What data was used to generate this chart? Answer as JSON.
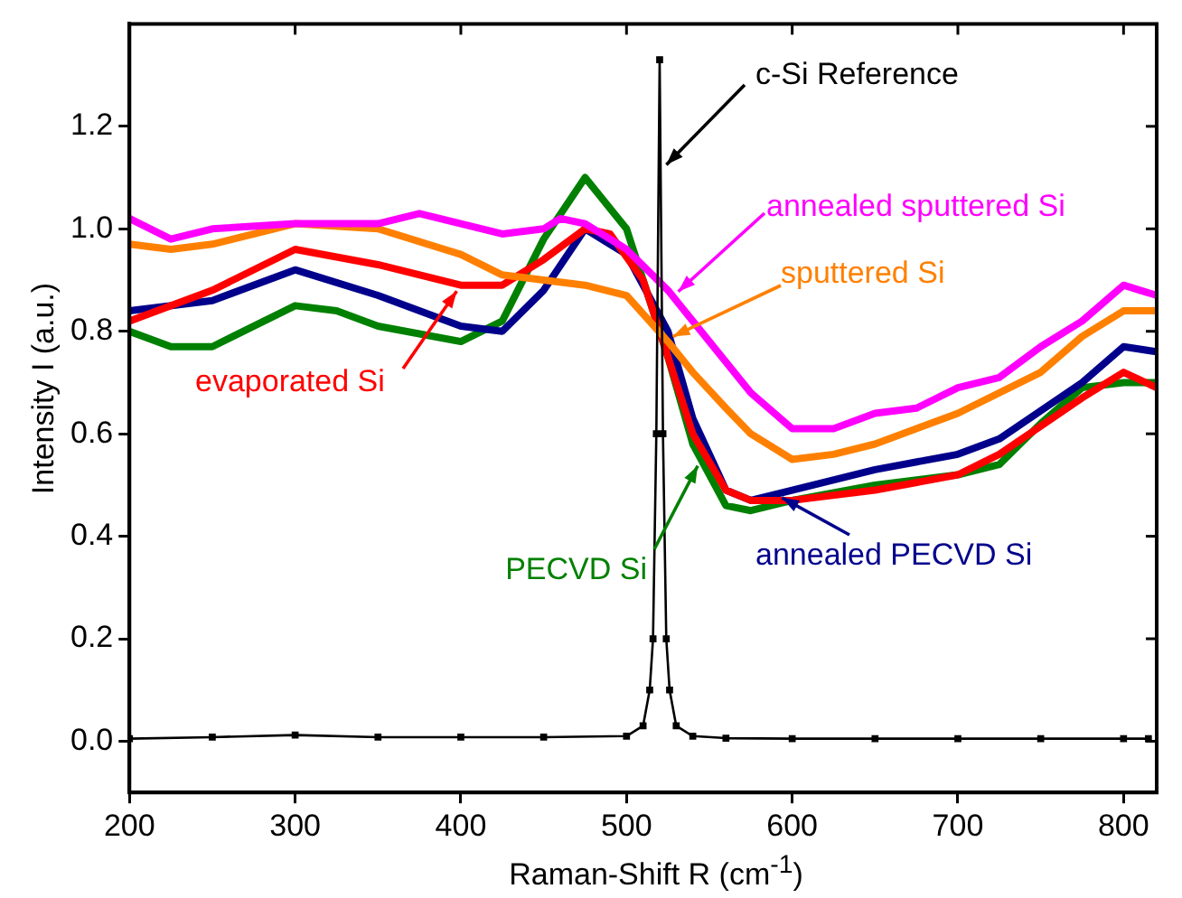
{
  "chart_data": {
    "type": "line",
    "xlabel": "Raman-Shift R (cm$^{-1}$)",
    "ylabel": "Intensity I (a.u.)",
    "xlim": [
      200,
      820
    ],
    "xticks": [
      200,
      300,
      400,
      500,
      600,
      700,
      800
    ],
    "ylim": [
      -0.1,
      1.4
    ],
    "yticks": [
      {
        "value": 0,
        "label": "0.0"
      },
      0.2,
      0.4,
      0.6,
      0.8,
      {
        "value": 1,
        "label": "1.0"
      },
      1.2
    ],
    "grid": false,
    "legend": "right",
    "line_style": "solid",
    "series": [
      {
        "name": "c-Si Reference",
        "color": "#000000",
        "marker": "square",
        "x": [
          200,
          250,
          300,
          350,
          400,
          450,
          500,
          510,
          514,
          516,
          518,
          520,
          522,
          524,
          526,
          530,
          540,
          560,
          600,
          650,
          700,
          750,
          800,
          815
        ],
        "values": [
          0.005,
          0.008,
          0.012,
          0.008,
          0.008,
          0.008,
          0.01,
          0.03,
          0.1,
          0.2,
          0.6,
          1.33,
          0.6,
          0.2,
          0.1,
          0.03,
          0.01,
          0.006,
          0.005,
          0.005,
          0.005,
          0.005,
          0.005,
          0.005
        ]
      },
      {
        "name": "annealed sputtered Si",
        "color": "#ff00ff",
        "marker": "none",
        "x": [
          200,
          225,
          250,
          300,
          350,
          375,
          400,
          425,
          450,
          460,
          475,
          500,
          525,
          550,
          575,
          600,
          625,
          650,
          675,
          700,
          725,
          750,
          775,
          800,
          810,
          820
        ],
        "values": [
          1.02,
          0.98,
          1.0,
          1.01,
          1.01,
          1.03,
          1.01,
          0.99,
          1.0,
          1.02,
          1.01,
          0.96,
          0.88,
          0.78,
          0.68,
          0.61,
          0.61,
          0.64,
          0.65,
          0.69,
          0.71,
          0.77,
          0.82,
          0.89,
          0.88,
          0.87
        ]
      },
      {
        "name": "sputtered Si",
        "color": "#ff8000",
        "marker": "none",
        "x": [
          200,
          225,
          250,
          300,
          350,
          400,
          425,
          450,
          475,
          500,
          525,
          540,
          560,
          575,
          600,
          625,
          650,
          700,
          750,
          775,
          800,
          820
        ],
        "values": [
          0.97,
          0.96,
          0.97,
          1.01,
          1.0,
          0.95,
          0.91,
          0.9,
          0.89,
          0.87,
          0.78,
          0.72,
          0.65,
          0.6,
          0.55,
          0.56,
          0.58,
          0.64,
          0.72,
          0.79,
          0.84,
          0.84
        ]
      },
      {
        "name": "evaporated Si",
        "color": "#ff0000",
        "marker": "none",
        "x": [
          200,
          250,
          300,
          350,
          400,
          425,
          450,
          475,
          490,
          510,
          525,
          540,
          560,
          575,
          600,
          650,
          700,
          725,
          775,
          800,
          820
        ],
        "values": [
          0.82,
          0.88,
          0.96,
          0.93,
          0.89,
          0.89,
          0.94,
          1.0,
          0.99,
          0.9,
          0.75,
          0.6,
          0.49,
          0.47,
          0.47,
          0.49,
          0.52,
          0.56,
          0.67,
          0.72,
          0.69
        ]
      },
      {
        "name": "annealed PECVD Si",
        "color": "#00008b",
        "marker": "none",
        "x": [
          200,
          250,
          300,
          350,
          400,
          425,
          450,
          475,
          500,
          525,
          540,
          560,
          575,
          600,
          650,
          700,
          725,
          775,
          800,
          820
        ],
        "values": [
          0.84,
          0.86,
          0.92,
          0.87,
          0.81,
          0.8,
          0.88,
          1.0,
          0.95,
          0.8,
          0.63,
          0.49,
          0.47,
          0.49,
          0.53,
          0.56,
          0.59,
          0.7,
          0.77,
          0.76
        ]
      },
      {
        "name": "PECVD Si",
        "color": "#008000",
        "marker": "none",
        "x": [
          200,
          225,
          250,
          300,
          325,
          350,
          400,
          425,
          450,
          475,
          500,
          525,
          540,
          560,
          575,
          600,
          650,
          700,
          725,
          750,
          775,
          800,
          820
        ],
        "values": [
          0.8,
          0.77,
          0.77,
          0.85,
          0.84,
          0.81,
          0.78,
          0.82,
          0.98,
          1.1,
          1.0,
          0.75,
          0.58,
          0.46,
          0.45,
          0.47,
          0.5,
          0.52,
          0.54,
          0.62,
          0.69,
          0.7,
          0.7
        ]
      }
    ]
  }
}
